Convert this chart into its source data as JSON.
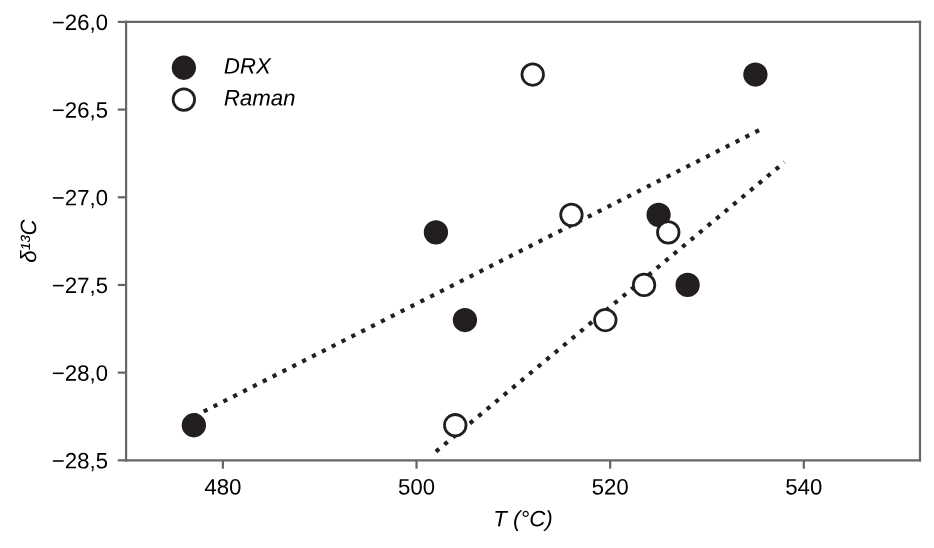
{
  "chart_data": {
    "type": "scatter",
    "xlabel": "T (°C)",
    "ylabel": "δ¹³C",
    "series": [
      {
        "name": "DRX",
        "color": "#231f20",
        "marker": "circle",
        "x": [
          477,
          502,
          505,
          525,
          528,
          535
        ],
        "values": [
          -28.3,
          -27.2,
          -27.7,
          -27.1,
          -27.5,
          -26.3
        ]
      },
      {
        "name": "Raman",
        "color": "#ffffff",
        "marker": "circle",
        "x": [
          504,
          512,
          516,
          519.5,
          523.5,
          526
        ],
        "values": [
          -28.3,
          -26.3,
          -27.1,
          -27.7,
          -27.5,
          -27.2
        ]
      },
      {
        "type": "line",
        "marker": "none",
        "line_style": "dotted",
        "color": "#231f20",
        "x": [
          477,
          536
        ],
        "values": [
          -28.25,
          -26.6
        ]
      },
      {
        "type": "line",
        "marker": "none",
        "line_style": "dotted",
        "color": "#231f20",
        "x": [
          502,
          538
        ],
        "values": [
          -28.45,
          -26.8
        ]
      }
    ],
    "xlim": [
      470,
      552
    ],
    "xticks": [
      480,
      500,
      520,
      540
    ],
    "ylim": [
      -28.5,
      -26.0
    ],
    "yticks": [
      {
        "value": -28.5,
        "label": "−28,5"
      },
      {
        "value": -28.0,
        "label": "−28,0"
      },
      {
        "value": -27.5,
        "label": "−27,5"
      },
      {
        "value": -27.0,
        "label": "−27,0"
      },
      {
        "value": -26.5,
        "label": "−26,5"
      },
      {
        "value": -26.0,
        "label": "−26,0"
      }
    ],
    "grid": false,
    "legend": "top left"
  }
}
